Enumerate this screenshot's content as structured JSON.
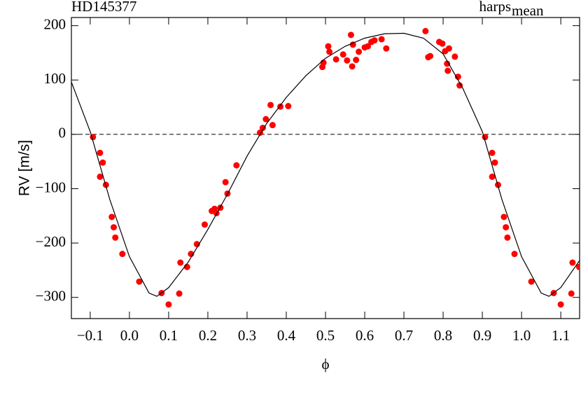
{
  "chart_data": {
    "type": "scatter",
    "title": "HD145377",
    "annotation": "harps",
    "annotation_subscript": "mean",
    "xlabel": "ϕ",
    "ylabel": "RV [m/s]",
    "xlim": [
      -0.148,
      1.148
    ],
    "ylim": [
      -339,
      215
    ],
    "xticks": [
      {
        "value": -0.1,
        "label": "−0.1"
      },
      {
        "value": 0,
        "label": "0.0"
      },
      0.1,
      0.2,
      0.3,
      0.4,
      0.5,
      0.6,
      0.7,
      0.8,
      0.9,
      {
        "value": 1,
        "label": "1.0"
      },
      1.1
    ],
    "yticks": [
      {
        "value": -300,
        "label": "−300"
      },
      {
        "value": -200,
        "label": "−200"
      },
      {
        "value": -100,
        "label": "−100"
      },
      0,
      100,
      200
    ],
    "hline": 0,
    "series": [
      {
        "type": "scatter",
        "color": "#ff0000",
        "x": [
          -0.093,
          -0.075,
          -0.075,
          -0.068,
          -0.06,
          -0.045,
          -0.04,
          -0.036,
          -0.018,
          0.025,
          0.082,
          0.1,
          0.127,
          0.13,
          0.147,
          0.157,
          0.172,
          0.192,
          0.21,
          0.217,
          0.222,
          0.232,
          0.245,
          0.25,
          0.273,
          0.333,
          0.34,
          0.348,
          0.36,
          0.365,
          0.385,
          0.405,
          0.492,
          0.495,
          0.507,
          0.51,
          0.527,
          0.545,
          0.555,
          0.565,
          0.568,
          0.57,
          0.578,
          0.585,
          0.6,
          0.608,
          0.617,
          0.625,
          0.643,
          0.655,
          0.755,
          0.762,
          0.767,
          0.79,
          0.798,
          0.805,
          0.81,
          0.812,
          0.815,
          0.83,
          0.838,
          0.842,
          0.907,
          0.925,
          0.925,
          0.932,
          0.94,
          0.955,
          0.96,
          0.964,
          0.982,
          1.025,
          1.082,
          1.1,
          1.127,
          1.13,
          1.147
        ],
        "values": [
          -5,
          -34,
          -78,
          -52,
          -93,
          -152,
          -171,
          -190,
          -220,
          -271,
          -292,
          -313,
          -293,
          -236,
          -244,
          -220,
          -202,
          -166,
          -141,
          -137,
          -145,
          -135,
          -88,
          -109,
          -57,
          3,
          12,
          28,
          54,
          17,
          51,
          52,
          124,
          132,
          162,
          152,
          138,
          147,
          136,
          183,
          125,
          165,
          137,
          152,
          160,
          162,
          170,
          173,
          175,
          158,
          190,
          142,
          144,
          170,
          167,
          153,
          130,
          117,
          158,
          143,
          106,
          90,
          -5,
          -34,
          -78,
          -52,
          -93,
          -152,
          -171,
          -190,
          -220,
          -271,
          -292,
          -313,
          -293,
          -236,
          -244
        ]
      },
      {
        "type": "line",
        "color": "#000000",
        "x": [
          -0.15,
          -0.1,
          -0.05,
          0,
          0.05,
          0.07,
          0.1,
          0.15,
          0.2,
          0.25,
          0.3,
          0.35,
          0.4,
          0.45,
          0.5,
          0.55,
          0.6,
          0.65,
          0.7,
          0.75,
          0.8,
          0.85,
          0.9,
          0.95,
          1,
          1.05,
          1.07,
          1.1,
          1.15
        ],
        "values": [
          100,
          5,
          -120,
          -225,
          -292,
          -298,
          -282,
          -235,
          -175,
          -110,
          -40,
          20,
          68,
          108,
          140,
          162,
          177,
          185,
          186,
          177,
          148,
          85,
          5,
          -120,
          -225,
          -292,
          -298,
          -282,
          -230
        ]
      }
    ]
  }
}
